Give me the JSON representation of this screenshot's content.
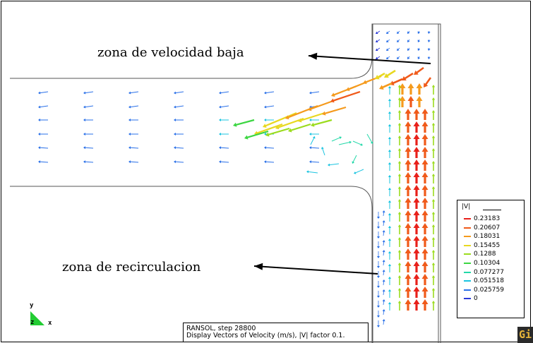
{
  "annotations": {
    "low_velocity": "zona de velocidad baja",
    "recirculation": "zona de recirculacion"
  },
  "legend": {
    "title": "|V|",
    "entries": [
      {
        "label": "0.23183",
        "color": "#e8201a"
      },
      {
        "label": "0.20607",
        "color": "#f05a1a"
      },
      {
        "label": "0.18031",
        "color": "#f59a1c"
      },
      {
        "label": "0.15455",
        "color": "#e8d820"
      },
      {
        "label": "0.1288",
        "color": "#9bdc1e"
      },
      {
        "label": "0.10304",
        "color": "#3cd642"
      },
      {
        "label": "0.077277",
        "color": "#22d8a8"
      },
      {
        "label": "0.051518",
        "color": "#1ac4e0"
      },
      {
        "label": "0.025759",
        "color": "#2a70e8"
      },
      {
        "label": "0",
        "color": "#2a3ad8"
      }
    ]
  },
  "status": {
    "line1": "RANSOL, step 28800",
    "line2": "Display Vectors of Velocity (m/s), |V| factor 0.1."
  },
  "axes": {
    "y": "y",
    "z": "z",
    "x": "x"
  },
  "logo": {
    "text": "Gi"
  }
}
